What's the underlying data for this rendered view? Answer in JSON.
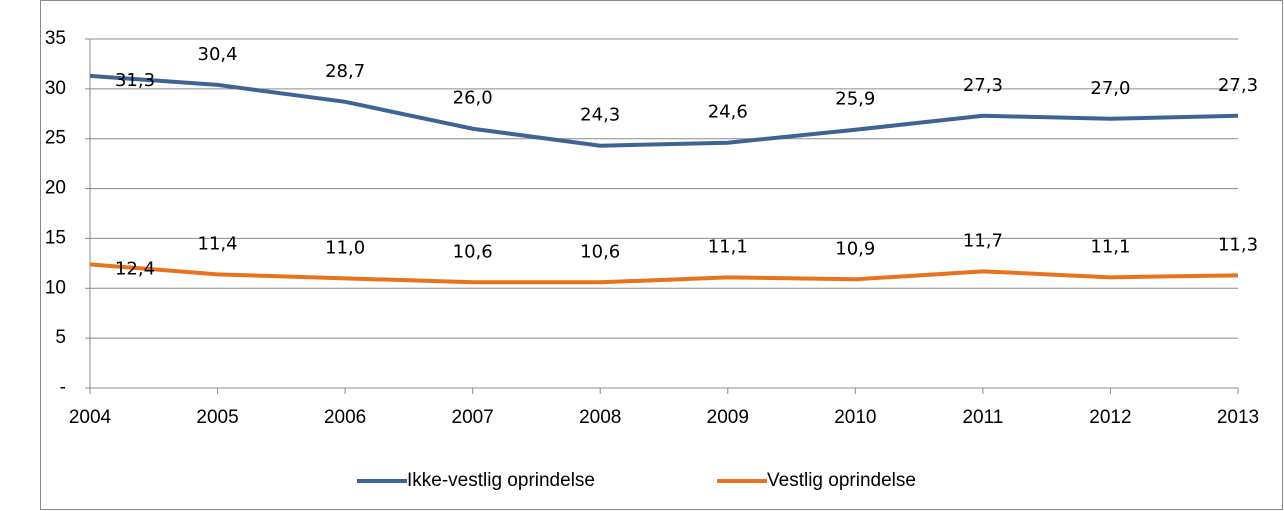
{
  "chart_data": {
    "type": "line",
    "x": [
      2004,
      2005,
      2006,
      2007,
      2008,
      2009,
      2010,
      2011,
      2012,
      2013
    ],
    "xlim": [
      2004,
      2013
    ],
    "xticks": [
      2004,
      2005,
      2006,
      2007,
      2008,
      2009,
      2010,
      2011,
      2012,
      2013
    ],
    "ylim": [
      0,
      35
    ],
    "yticks": [
      {
        "value": 0,
        "label": "-"
      },
      5,
      10,
      15,
      20,
      25,
      30,
      35
    ],
    "grid": true,
    "legend": "bottom",
    "series": [
      {
        "name": "Ikke-vestlig oprindelse",
        "color": "#3d6494",
        "values": [
          31.3,
          30.4,
          28.7,
          26.0,
          24.3,
          24.6,
          25.9,
          27.3,
          27.0,
          27.3
        ],
        "value_labels": [
          "31,3",
          "30,4",
          "28,7",
          "26,0",
          "24,3",
          "24,6",
          "25,9",
          "27,3",
          "27,0",
          "27,3"
        ]
      },
      {
        "name": "Vestlig oprindelse",
        "color": "#e8721d",
        "values": [
          12.4,
          11.4,
          11.0,
          10.6,
          10.6,
          11.1,
          10.9,
          11.7,
          11.1,
          11.3
        ],
        "value_labels": [
          "12,4",
          "11,4",
          "11,0",
          "10,6",
          "10,6",
          "11,1",
          "10,9",
          "11,7",
          "11,1",
          "11,3"
        ]
      }
    ]
  }
}
